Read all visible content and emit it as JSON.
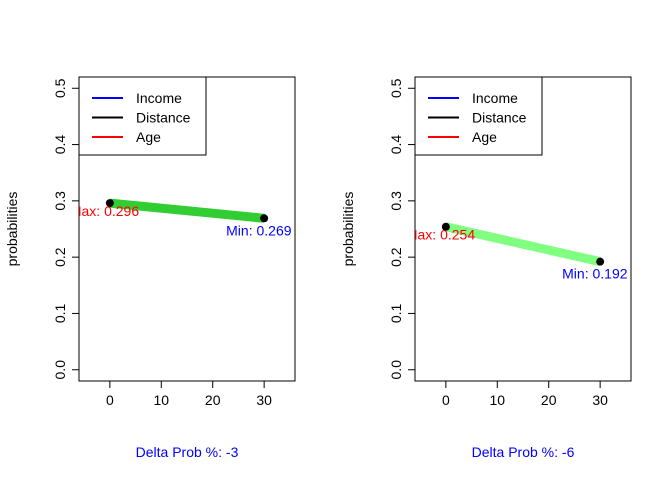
{
  "chart_data": [
    {
      "type": "line",
      "ylabel": "probabilities",
      "xlabel": "Delta Prob %: -3",
      "xlim": [
        -6,
        36
      ],
      "ylim": [
        -0.02,
        0.52
      ],
      "x_ticks": [
        0,
        10,
        20,
        30
      ],
      "y_ticks": [
        0.0,
        0.1,
        0.2,
        0.3,
        0.4,
        0.5
      ],
      "x_tick_labels": [
        "0",
        "10",
        "20",
        "30"
      ],
      "y_tick_labels": [
        "0.0",
        "0.1",
        "0.2",
        "0.3",
        "0.4",
        "0.5"
      ],
      "grid": false,
      "legend_position": "top-left",
      "legend": [
        {
          "label": "Income",
          "color": "#0000ff"
        },
        {
          "label": "Distance",
          "color": "#000000"
        },
        {
          "label": "Age",
          "color": "#ff0000"
        }
      ],
      "series": [
        {
          "x": [
            0,
            30
          ],
          "y": [
            0.296,
            0.269
          ],
          "color": "#32cd32"
        }
      ],
      "annotations": [
        {
          "text": "Max: 0.296",
          "x": 0,
          "y": 0.296,
          "color": "#ff0000"
        },
        {
          "text": "Min: 0.269",
          "x": 30,
          "y": 0.269,
          "color": "#0000ff"
        }
      ]
    },
    {
      "type": "line",
      "ylabel": "probabilities",
      "xlabel": "Delta Prob %: -6",
      "xlim": [
        -6,
        36
      ],
      "ylim": [
        -0.02,
        0.52
      ],
      "x_ticks": [
        0,
        10,
        20,
        30
      ],
      "y_ticks": [
        0.0,
        0.1,
        0.2,
        0.3,
        0.4,
        0.5
      ],
      "x_tick_labels": [
        "0",
        "10",
        "20",
        "30"
      ],
      "y_tick_labels": [
        "0.0",
        "0.1",
        "0.2",
        "0.3",
        "0.4",
        "0.5"
      ],
      "grid": false,
      "legend_position": "top-left",
      "legend": [
        {
          "label": "Income",
          "color": "#0000ff"
        },
        {
          "label": "Distance",
          "color": "#000000"
        },
        {
          "label": "Age",
          "color": "#ff0000"
        }
      ],
      "series": [
        {
          "x": [
            0,
            30
          ],
          "y": [
            0.254,
            0.192
          ],
          "color": "#80ff80"
        }
      ],
      "annotations": [
        {
          "text": "Max: 0.254",
          "x": 0,
          "y": 0.254,
          "color": "#ff0000"
        },
        {
          "text": "Min: 0.192",
          "x": 30,
          "y": 0.192,
          "color": "#0000ff"
        }
      ]
    }
  ]
}
